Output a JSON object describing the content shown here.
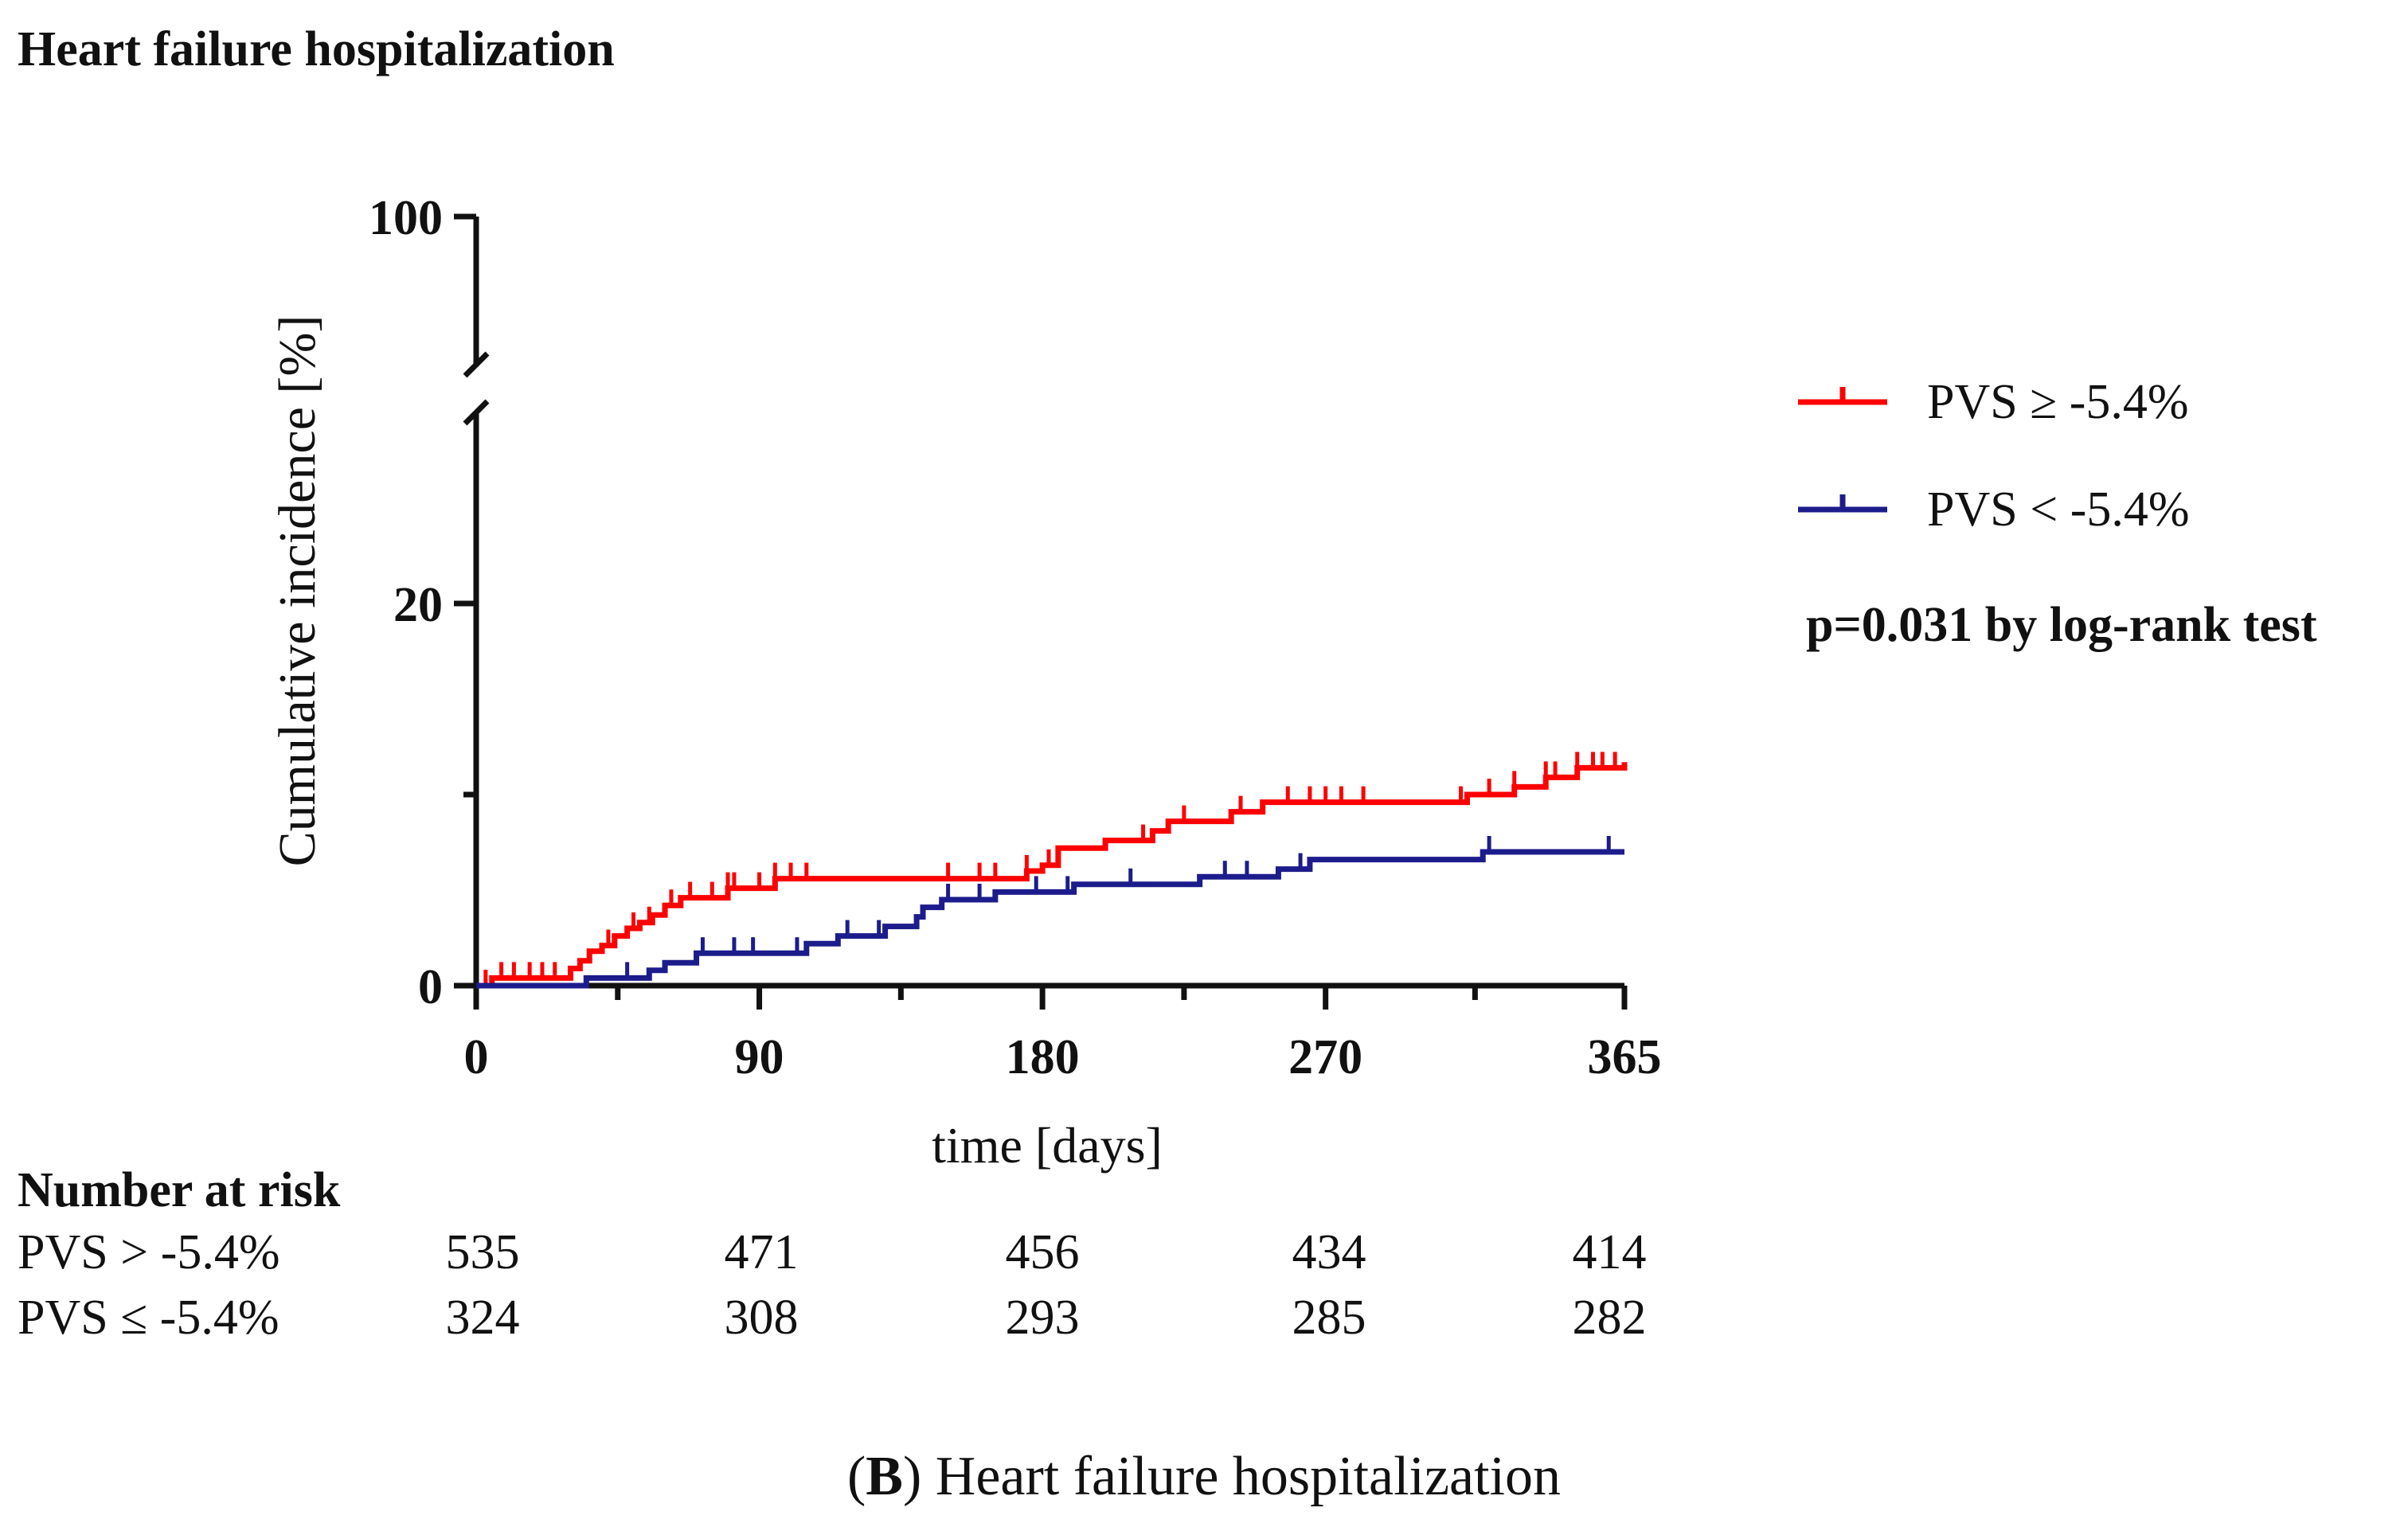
{
  "chart_data": {
    "type": "line",
    "subtype": "kaplan-meier cumulative incidence",
    "title": "Heart failure hospitalization",
    "xlabel": "time [days]",
    "ylabel": "Cumulative incidence [%]",
    "xlim": [
      0,
      365
    ],
    "ylim": [
      0,
      100
    ],
    "y_axis_break": true,
    "x_ticks": [
      0,
      90,
      180,
      270,
      365
    ],
    "y_ticks": [
      0,
      20,
      100
    ],
    "legend_position": "right",
    "annotation": "p=0.031 by log-rank test",
    "series": [
      {
        "name": "PVS ≥ -5.4%",
        "color": "#ff0000",
        "points": [
          [
            0,
            0
          ],
          [
            5,
            0.4
          ],
          [
            28,
            0.4
          ],
          [
            30,
            0.9
          ],
          [
            33,
            1.3
          ],
          [
            36,
            1.8
          ],
          [
            40,
            2.1
          ],
          [
            44,
            2.6
          ],
          [
            48,
            3.0
          ],
          [
            52,
            3.3
          ],
          [
            56,
            3.7
          ],
          [
            60,
            4.2
          ],
          [
            65,
            4.6
          ],
          [
            75,
            4.6
          ],
          [
            80,
            5.1
          ],
          [
            88,
            5.1
          ],
          [
            95,
            5.6
          ],
          [
            110,
            5.6
          ],
          [
            150,
            5.6
          ],
          [
            175,
            6.0
          ],
          [
            180,
            6.3
          ],
          [
            185,
            7.2
          ],
          [
            200,
            7.6
          ],
          [
            215,
            8.1
          ],
          [
            220,
            8.6
          ],
          [
            240,
            9.1
          ],
          [
            250,
            9.6
          ],
          [
            265,
            9.6
          ],
          [
            305,
            9.6
          ],
          [
            315,
            10.0
          ],
          [
            330,
            10.4
          ],
          [
            340,
            10.9
          ],
          [
            350,
            11.4
          ],
          [
            365,
            11.7
          ]
        ]
      },
      {
        "name": "PVS < -5.4%",
        "color": "#1c1c8c",
        "points": [
          [
            0,
            0
          ],
          [
            32,
            0
          ],
          [
            35,
            0.4
          ],
          [
            50,
            0.4
          ],
          [
            55,
            0.8
          ],
          [
            60,
            1.2
          ],
          [
            70,
            1.7
          ],
          [
            100,
            1.7
          ],
          [
            105,
            2.2
          ],
          [
            115,
            2.6
          ],
          [
            130,
            3.1
          ],
          [
            140,
            3.6
          ],
          [
            142,
            4.1
          ],
          [
            148,
            4.5
          ],
          [
            165,
            4.9
          ],
          [
            190,
            5.3
          ],
          [
            225,
            5.3
          ],
          [
            230,
            5.7
          ],
          [
            255,
            6.1
          ],
          [
            265,
            6.6
          ],
          [
            315,
            6.6
          ],
          [
            320,
            7.0
          ],
          [
            365,
            7.0
          ]
        ]
      }
    ],
    "censor_marks": {
      "PVS ≥ -5.4%": [
        3,
        8,
        12,
        17,
        21,
        25,
        42,
        50,
        55,
        62,
        68,
        75,
        80,
        82,
        90,
        95,
        100,
        105,
        150,
        160,
        165,
        175,
        182,
        212,
        225,
        243,
        258,
        265,
        270,
        275,
        282,
        313,
        322,
        330,
        340,
        343,
        350,
        355,
        358,
        362
      ],
      "PVS < -5.4%": [
        48,
        72,
        82,
        88,
        102,
        118,
        128,
        150,
        160,
        178,
        188,
        208,
        238,
        245,
        262,
        322,
        360
      ]
    }
  },
  "legend": {
    "items": [
      {
        "label": "PVS ≥ -5.4%",
        "color": "#ff0000"
      },
      {
        "label": "PVS < -5.4%",
        "color": "#1c1c8c"
      }
    ]
  },
  "risk_table": {
    "title": "Number at risk",
    "rows": [
      {
        "label": "PVS > -5.4%",
        "values": [
          "535",
          "471",
          "456",
          "434",
          "414"
        ]
      },
      {
        "label": "PVS ≤ -5.4%",
        "values": [
          "324",
          "308",
          "293",
          "285",
          "282"
        ]
      }
    ]
  },
  "caption": {
    "panel": "B",
    "paren_open": "(",
    "rest": ") Heart failure hospitalization"
  }
}
